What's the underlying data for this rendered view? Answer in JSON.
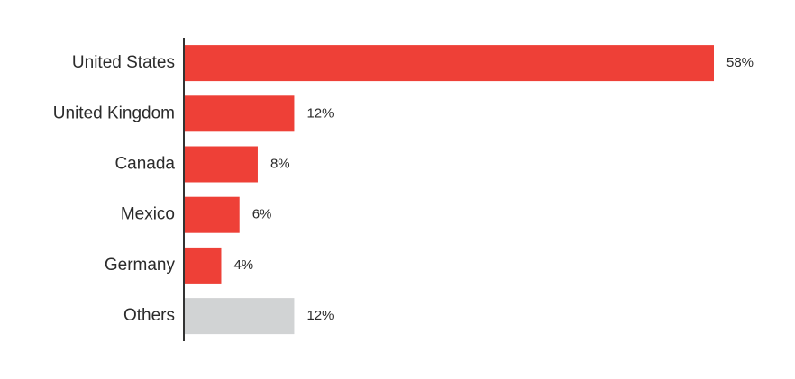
{
  "chart_data": {
    "type": "bar",
    "orientation": "horizontal",
    "categories": [
      "United States",
      "United Kingdom",
      "Canada",
      "Mexico",
      "Germany",
      "Others"
    ],
    "values": [
      58,
      12,
      8,
      6,
      4,
      12
    ],
    "value_labels": [
      "58%",
      "12%",
      "8%",
      "6%",
      "4%",
      "12%"
    ],
    "colors": [
      "#ee4037",
      "#ee4037",
      "#ee4037",
      "#ee4037",
      "#ee4037",
      "#d1d3d4"
    ]
  }
}
